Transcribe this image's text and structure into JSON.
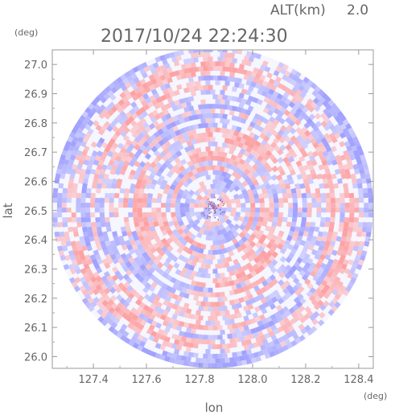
{
  "header": {
    "altitude_label": "ALT(km)",
    "altitude_value": "2.0",
    "timestamp": "2017/10/24 22:24:30"
  },
  "chart_data": {
    "type": "heatmap",
    "title": "2017/10/24 22:24:30",
    "xlabel": "lon",
    "ylabel": "lat",
    "x_unit": "(deg)",
    "y_unit": "(deg)",
    "xlim": [
      127.245,
      128.455
    ],
    "ylim": [
      25.96,
      27.05
    ],
    "x_ticks": [
      "127.4",
      "127.6",
      "127.8",
      "128.0",
      "128.2",
      "128.4"
    ],
    "y_ticks": [
      "26.0",
      "26.1",
      "26.2",
      "26.3",
      "26.4",
      "26.5",
      "26.6",
      "26.7",
      "26.8",
      "26.9",
      "27.0"
    ],
    "x_tick_values": [
      127.4,
      127.6,
      127.8,
      128.0,
      128.2,
      128.4
    ],
    "y_tick_values": [
      26.0,
      26.1,
      26.2,
      26.3,
      26.4,
      26.5,
      26.6,
      26.7,
      26.8,
      26.9,
      27.0
    ],
    "radar_center": {
      "lon": 127.85,
      "lat": 26.51
    },
    "radar_radius_lon_deg": 0.605,
    "colors": {
      "positive": "#ff9a9a",
      "negative": "#9a9aff",
      "axis": "#888888",
      "text": "#666666"
    },
    "grid": false,
    "legend": "none"
  }
}
